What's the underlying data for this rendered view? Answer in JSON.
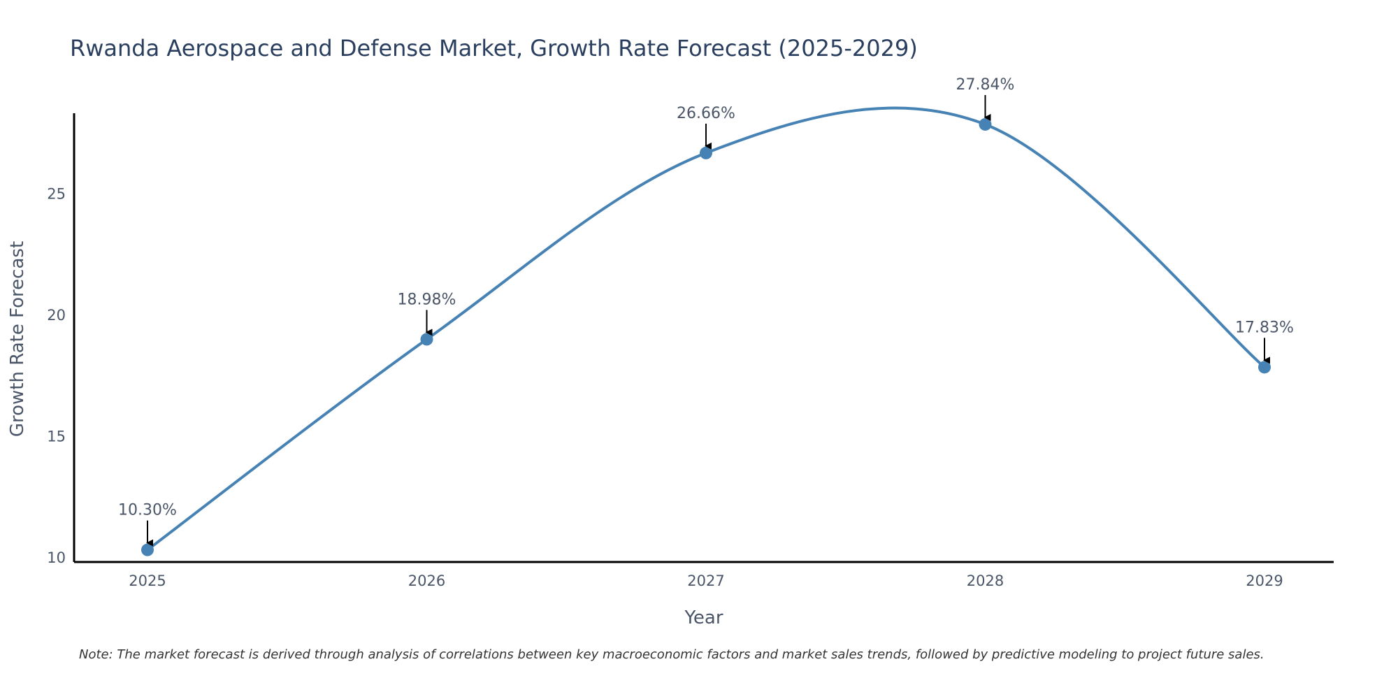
{
  "chart_data": {
    "type": "line",
    "title": "Rwanda Aerospace and Defense Market, Growth Rate Forecast (2025-2029)",
    "xlabel": "Year",
    "ylabel": "Growth Rate Forecast",
    "categories": [
      "2025",
      "2026",
      "2027",
      "2028",
      "2029"
    ],
    "values": [
      10.3,
      18.98,
      26.66,
      27.84,
      17.83
    ],
    "data_labels": [
      "10.30%",
      "18.98%",
      "26.66%",
      "27.84%",
      "17.83%"
    ],
    "ylim": [
      9.8,
      28.3
    ],
    "yticks": [
      10,
      15,
      20,
      25
    ],
    "ytick_labels": [
      "10",
      "15",
      "20",
      "25"
    ],
    "grid": false,
    "legend": "none",
    "line_shape": "spline",
    "note": "Note: The market forecast is derived through analysis of correlations between key macroeconomic factors and market sales trends, followed by predictive modeling to project future sales."
  },
  "colors": {
    "series": "#4682b4",
    "text": "#2a3f5f",
    "axis": "#000000",
    "arrow": "#000000"
  }
}
